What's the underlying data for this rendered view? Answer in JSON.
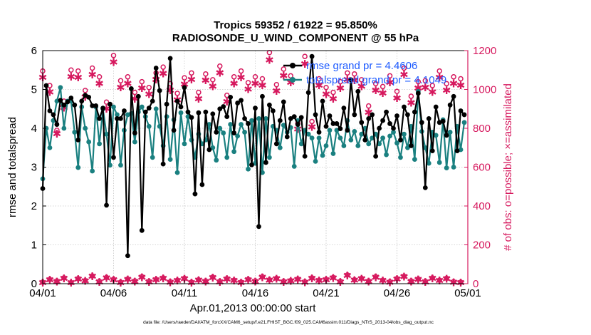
{
  "chart_data": {
    "type": "line",
    "title": "Tropics 59352 / 61922 = 95.850%",
    "subtitle": "RADIOSONDE_U_WIND_COMPONENT @ 55 hPa",
    "xlabel": "Apr.01,2013 00:00:00 start",
    "ylabel_left": "rmse and totalspread",
    "ylabel_right": "# of obs: o=possible; ×=assimilated",
    "xlim": [
      0,
      30
    ],
    "ylim_left": [
      0,
      6
    ],
    "ylim_right": [
      0,
      1200
    ],
    "x_ticks": [
      0,
      5,
      10,
      15,
      20,
      25,
      30
    ],
    "x_tick_labels": [
      "04/01",
      "04/06",
      "04/11",
      "04/16",
      "04/21",
      "04/26",
      "05/01"
    ],
    "y_ticks_left": [
      0,
      1,
      2,
      3,
      4,
      5,
      6
    ],
    "y_ticks_right": [
      0,
      200,
      400,
      600,
      800,
      1000,
      1200
    ],
    "grid": true,
    "legend": "top-right",
    "colors": {
      "rmse": "#000000",
      "spread": "#1a8080",
      "obs": "#d6195e",
      "legend_text": "#1f5cff",
      "axis": "#000000"
    },
    "footnote": "data file: /Users/raeder/DAI/ATM_forcXX/CAM6_setup/f.e21.FHIST_BGC.f09_025.CAM6assim.011/Diags_NTrS_2013-04/obs_diag_output.nc",
    "series": [
      {
        "name": "rmse",
        "legend": "rmse grand pr = 4.4606",
        "x": [
          0.0,
          0.25,
          0.5,
          0.75,
          1.0,
          1.25,
          1.5,
          1.75,
          2.0,
          2.25,
          2.5,
          2.75,
          3.0,
          3.25,
          3.5,
          3.75,
          4.0,
          4.25,
          4.5,
          4.75,
          5.0,
          5.25,
          5.5,
          5.75,
          6.0,
          6.25,
          6.5,
          6.75,
          7.0,
          7.25,
          7.5,
          7.75,
          8.0,
          8.25,
          8.5,
          8.75,
          9.0,
          9.25,
          9.5,
          9.75,
          10.0,
          10.25,
          10.5,
          10.75,
          11.0,
          11.25,
          11.5,
          11.75,
          12.0,
          12.25,
          12.5,
          12.75,
          13.0,
          13.25,
          13.5,
          13.75,
          14.0,
          14.25,
          14.5,
          14.75,
          15.0,
          15.25,
          15.5,
          15.75,
          16.0,
          16.25,
          16.5,
          16.75,
          17.0,
          17.25,
          17.5,
          17.75,
          18.0,
          18.25,
          18.5,
          18.75,
          19.0,
          19.25,
          19.5,
          19.75,
          20.0,
          20.25,
          20.5,
          20.75,
          21.0,
          21.25,
          21.5,
          21.75,
          22.0,
          22.25,
          22.5,
          22.75,
          23.0,
          23.25,
          23.5,
          23.75,
          24.0,
          24.25,
          24.5,
          24.75,
          25.0,
          25.25,
          25.5,
          25.75,
          26.0,
          26.25,
          26.5,
          26.75,
          27.0,
          27.25,
          27.5,
          27.75,
          28.0,
          28.25,
          28.5,
          28.75,
          29.0,
          29.25,
          29.5,
          29.75
        ],
        "values": [
          2.45,
          5.1,
          4.45,
          4.35,
          4.1,
          4.72,
          4.6,
          4.68,
          4.78,
          4.6,
          3.7,
          4.7,
          4.85,
          4.8,
          4.58,
          4.58,
          4.25,
          4.52,
          2.02,
          4.62,
          3.25,
          4.25,
          4.25,
          4.45,
          0.72,
          5.02,
          3.88,
          4.82,
          1.37,
          4.42,
          4.52,
          4.7,
          5.55,
          4.97,
          3.08,
          4.62,
          5.8,
          3.95,
          4.7,
          4.55,
          5.05,
          4.42,
          4.28,
          2.31,
          4.4,
          2.55,
          4.42,
          3.45,
          4.37,
          3.9,
          4.5,
          4.56,
          4.3,
          4.8,
          3.88,
          4.65,
          4.72,
          4.25,
          4.12,
          3.06,
          4.52,
          1.47,
          4.82,
          3.12,
          4.6,
          4.45,
          3.6,
          4.2,
          4.68,
          3.78,
          4.25,
          4.3,
          4.1,
          4.28,
          3.28,
          4.92,
          5.85,
          4.35,
          3.9,
          4.7,
          4.05,
          4.32,
          4.12,
          4.12,
          3.99,
          4.52,
          3.95,
          5.25,
          4.35,
          4.95,
          4.15,
          3.7,
          4.25,
          4.35,
          3.28,
          4.0,
          4.2,
          4.42,
          4.12,
          4.0,
          4.32,
          3.7,
          4.55,
          4.35,
          3.55,
          4.42,
          4.9,
          4.15,
          2.47,
          4.25,
          3.42,
          4.55,
          4.15,
          4.18,
          3.82,
          4.6,
          4.82,
          3.42,
          4.45,
          4.35
        ]
      },
      {
        "name": "totalspread",
        "legend": "totalspread grand pr = 4.1049",
        "x": [
          0.0,
          0.25,
          0.5,
          0.75,
          1.0,
          1.25,
          1.5,
          1.75,
          2.0,
          2.25,
          2.5,
          2.75,
          3.0,
          3.25,
          3.5,
          3.75,
          4.0,
          4.25,
          4.5,
          4.75,
          5.0,
          5.25,
          5.5,
          5.75,
          6.0,
          6.25,
          6.5,
          6.75,
          7.0,
          7.25,
          7.5,
          7.75,
          8.0,
          8.25,
          8.5,
          8.75,
          9.0,
          9.25,
          9.5,
          9.75,
          10.0,
          10.25,
          10.5,
          10.75,
          11.0,
          11.25,
          11.5,
          11.75,
          12.0,
          12.25,
          12.5,
          12.75,
          13.0,
          13.25,
          13.5,
          13.75,
          14.0,
          14.25,
          14.5,
          14.75,
          15.0,
          15.25,
          15.5,
          15.75,
          16.0,
          16.25,
          16.5,
          16.75,
          17.0,
          17.25,
          17.5,
          17.75,
          18.0,
          18.25,
          18.5,
          18.75,
          19.0,
          19.25,
          19.5,
          19.75,
          20.0,
          20.25,
          20.5,
          20.75,
          21.0,
          21.25,
          21.5,
          21.75,
          22.0,
          22.25,
          22.5,
          22.75,
          23.0,
          23.25,
          23.5,
          23.75,
          24.0,
          24.25,
          24.5,
          24.75,
          25.0,
          25.25,
          25.5,
          25.75,
          26.0,
          26.25,
          26.5,
          26.75,
          27.0,
          27.25,
          27.5,
          27.75,
          28.0,
          28.25,
          28.5,
          28.75,
          29.0,
          29.25,
          29.5,
          29.75
        ],
        "values": [
          2.7,
          4.0,
          3.5,
          4.2,
          4.7,
          5.05,
          4.0,
          4.7,
          4.7,
          3.9,
          2.99,
          4.55,
          4.0,
          3.65,
          2.9,
          4.55,
          3.6,
          4.5,
          3.85,
          3.05,
          4.55,
          4.35,
          3.05,
          3.95,
          4.35,
          4.38,
          3.65,
          4.42,
          4.55,
          4.3,
          4.05,
          3.25,
          4.5,
          4.05,
          3.55,
          4.3,
          3.2,
          4.22,
          2.86,
          4.4,
          3.6,
          4.3,
          3.7,
          3.25,
          3.85,
          3.6,
          3.7,
          4.1,
          3.5,
          3.18,
          4.0,
          3.88,
          3.25,
          4.1,
          3.4,
          3.8,
          4.1,
          3.9,
          2.95,
          4.2,
          3.1,
          4.25,
          2.86,
          4.25,
          3.25,
          4.05,
          3.95,
          3.5,
          4.08,
          3.9,
          4.02,
          3.02,
          4.2,
          3.6,
          3.95,
          3.85,
          3.75,
          3.15,
          3.75,
          3.3,
          3.55,
          3.95,
          3.35,
          3.95,
          3.75,
          3.55,
          4.2,
          3.7,
          3.92,
          3.55,
          3.85,
          4.0,
          3.6,
          3.75,
          3.85,
          3.6,
          3.75,
          3.32,
          3.8,
          3.9,
          3.62,
          3.25,
          3.85,
          3.5,
          4.05,
          3.2,
          4.95,
          3.92,
          3.5,
          3.1,
          3.9,
          3.82,
          3.12,
          4.22,
          2.98,
          3.9,
          3.0,
          4.05,
          3.45,
          4.15
        ]
      },
      {
        "name": "obs_possible",
        "marker": "o",
        "x": [
          0.0,
          0.5,
          1.0,
          1.5,
          2.0,
          2.5,
          3.0,
          3.5,
          4.0,
          4.5,
          5.0,
          5.5,
          6.0,
          6.5,
          7.0,
          7.5,
          8.0,
          8.5,
          9.0,
          9.5,
          10.0,
          10.5,
          11.0,
          11.5,
          12.0,
          12.5,
          13.0,
          13.5,
          14.0,
          14.5,
          15.0,
          15.5,
          16.0,
          16.5,
          17.0,
          17.5,
          18.0,
          18.5,
          19.0,
          19.5,
          20.0,
          20.5,
          21.0,
          21.5,
          22.0,
          22.5,
          23.0,
          23.5,
          24.0,
          24.5,
          25.0,
          25.5,
          26.0,
          26.5,
          27.0,
          27.5,
          28.0,
          28.5,
          29.0,
          29.5
        ],
        "values": [
          1095,
          1020,
          790,
          940,
          1100,
          1095,
          995,
          1110,
          1065,
          935,
          1175,
          1045,
          1065,
          985,
          1040,
          1010,
          1085,
          1115,
          1030,
          980,
          1060,
          1085,
          985,
          1080,
          1050,
          1120,
          970,
          1065,
          1095,
          1035,
          1065,
          1055,
          1190,
          1025,
          1105,
          1070,
          825,
          1170,
          835,
          1055,
          1010,
          985,
          1040,
          1085,
          1080,
          1050,
          915,
          1030,
          1015,
          1070,
          990,
          1110,
          965,
          1040,
          1045,
          1020,
          1095,
          1030,
          1065,
          1055
        ]
      },
      {
        "name": "obs_assimilated",
        "marker": "×",
        "x": [
          0.0,
          0.5,
          1.0,
          1.5,
          2.0,
          2.5,
          3.0,
          3.5,
          4.0,
          4.5,
          5.0,
          5.5,
          6.0,
          6.5,
          7.0,
          7.5,
          8.0,
          8.5,
          9.0,
          9.5,
          10.0,
          10.5,
          11.0,
          11.5,
          12.0,
          12.5,
          13.0,
          13.5,
          14.0,
          14.5,
          15.0,
          15.5,
          16.0,
          16.5,
          17.0,
          17.5,
          18.0,
          18.5,
          19.0,
          19.5,
          20.0,
          20.5,
          21.0,
          21.5,
          22.0,
          22.5,
          23.0,
          23.5,
          24.0,
          24.5,
          25.0,
          25.5,
          26.0,
          26.5,
          27.0,
          27.5,
          28.0,
          28.5,
          29.0,
          29.5
        ],
        "values": [
          1060,
          985,
          770,
          905,
          1065,
          1060,
          960,
          1075,
          1030,
          900,
          1140,
          1010,
          1030,
          950,
          1005,
          975,
          1050,
          1080,
          995,
          945,
          1025,
          1050,
          950,
          1045,
          1015,
          1085,
          935,
          1030,
          1060,
          1000,
          1030,
          1020,
          1150,
          990,
          1070,
          1035,
          795,
          1130,
          805,
          1020,
          975,
          950,
          1005,
          1050,
          1045,
          1015,
          880,
          995,
          980,
          1035,
          955,
          1075,
          930,
          1005,
          1010,
          985,
          1060,
          995,
          1030,
          1020
        ]
      },
      {
        "name": "obs_rejected_possible",
        "marker": "o",
        "x": [
          0.0,
          0.5,
          1.0,
          1.5,
          2.0,
          2.5,
          3.0,
          3.5,
          4.0,
          4.5,
          5.0,
          5.5,
          6.0,
          6.5,
          7.0,
          7.5,
          8.0,
          8.5,
          9.0,
          9.5,
          10.0,
          10.5,
          11.0,
          11.5,
          12.0,
          12.5,
          13.0,
          13.5,
          14.0,
          14.5,
          15.0,
          15.5,
          16.0,
          16.5,
          17.0,
          17.5,
          18.0,
          18.5,
          19.0,
          19.5,
          20.0,
          20.5,
          21.0,
          21.5,
          22.0,
          22.5,
          23.0,
          23.5,
          24.0,
          24.5,
          25.0,
          25.5,
          26.0,
          26.5,
          27.0,
          27.5,
          28.0,
          28.5,
          29.0,
          29.5
        ],
        "values": [
          8,
          22,
          14,
          30,
          6,
          26,
          16,
          40,
          12,
          32,
          22,
          8,
          24,
          14,
          36,
          12,
          22,
          30,
          10,
          18,
          28,
          8,
          20,
          14,
          34,
          12,
          26,
          18,
          8,
          22,
          14,
          36,
          20,
          28,
          12,
          16,
          24,
          10,
          30,
          18,
          22,
          32,
          12,
          45,
          20,
          28,
          14,
          36,
          18,
          10,
          26,
          38,
          14,
          24,
          12,
          30,
          18,
          28,
          10,
          8
        ]
      },
      {
        "name": "obs_rejected_assimilated",
        "marker": "×",
        "x": [
          0.0,
          0.5,
          1.0,
          1.5,
          2.0,
          2.5,
          3.0,
          3.5,
          4.0,
          4.5,
          5.0,
          5.5,
          6.0,
          6.5,
          7.0,
          7.5,
          8.0,
          8.5,
          9.0,
          9.5,
          10.0,
          10.5,
          11.0,
          11.5,
          12.0,
          12.5,
          13.0,
          13.5,
          14.0,
          14.5,
          15.0,
          15.5,
          16.0,
          16.5,
          17.0,
          17.5,
          18.0,
          18.5,
          19.0,
          19.5,
          20.0,
          20.5,
          21.0,
          21.5,
          22.0,
          22.5,
          23.0,
          23.5,
          24.0,
          24.5,
          25.0,
          25.5,
          26.0,
          26.5,
          27.0,
          27.5,
          28.0,
          28.5,
          29.0,
          29.5
        ],
        "values": [
          4,
          18,
          10,
          26,
          3,
          22,
          12,
          36,
          8,
          28,
          18,
          4,
          20,
          10,
          32,
          8,
          18,
          26,
          6,
          14,
          24,
          4,
          16,
          10,
          30,
          8,
          22,
          14,
          4,
          18,
          10,
          32,
          16,
          24,
          8,
          12,
          20,
          6,
          26,
          14,
          18,
          28,
          8,
          41,
          16,
          24,
          10,
          32,
          14,
          6,
          22,
          34,
          10,
          20,
          8,
          26,
          14,
          24,
          6,
          4
        ]
      }
    ]
  }
}
